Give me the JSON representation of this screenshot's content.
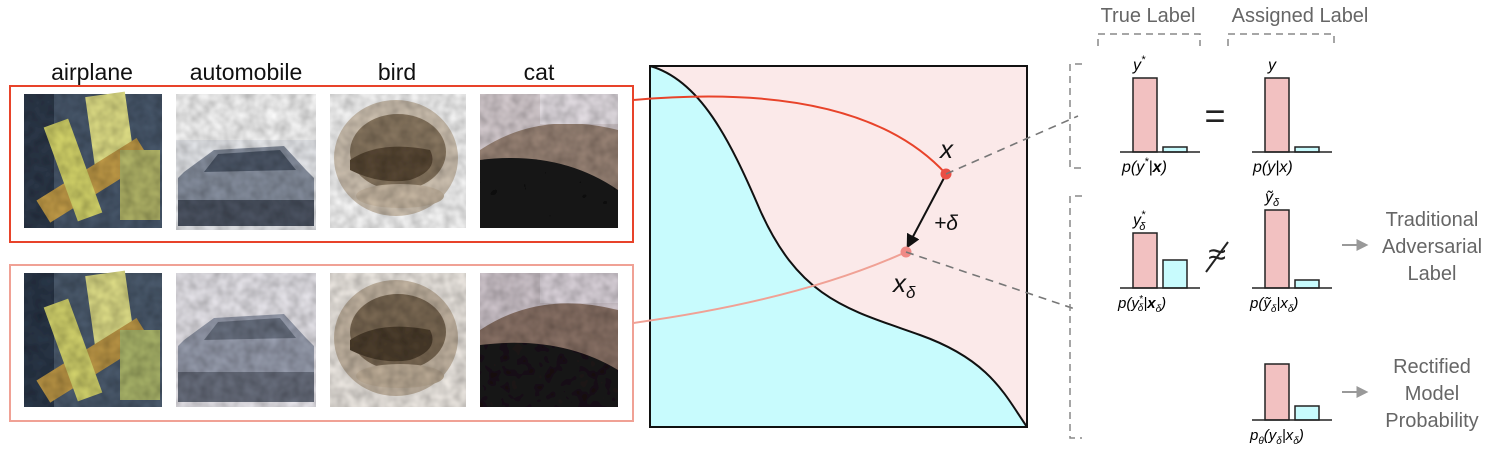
{
  "classes": [
    "airplane",
    "automobile",
    "bird",
    "cat"
  ],
  "colors": {
    "clean_frame": "#e8432a",
    "adv_frame": "#f0a195",
    "region_left": "#c8fbfd",
    "region_right": "#fbe9e9",
    "bar_pink": "#f2c1c1",
    "bar_cyan": "#c8fbfd",
    "clean_point": "#ea4f45",
    "adv_point": "#f08a86",
    "connector": "#777777",
    "label_text": "#666666"
  },
  "plot": {
    "point_clean": "x",
    "perturbation": "+δ",
    "point_adv": "x_δ"
  },
  "headers": {
    "true_label": "True Label",
    "assigned_label": "Assigned Label"
  },
  "row1": {
    "true_bar_label": "y*",
    "true_axis_label": "p(y*|x)",
    "relation": "=",
    "assigned_bar_label": "y",
    "assigned_axis_label": "p(y|x)",
    "true_bars": [
      0.95,
      0.05
    ],
    "assigned_bars": [
      0.95,
      0.05
    ]
  },
  "row2": {
    "true_bar_label": "y*_δ",
    "true_axis_label": "p(y*_δ|x_δ)",
    "relation": "≉",
    "assigned_bar_label": "ỹ_δ",
    "assigned_axis_label": "p(ỹ_δ|x_δ)",
    "true_bars": [
      0.62,
      0.32
    ],
    "assigned_bars": [
      0.92,
      0.07
    ],
    "result_label": [
      "Traditional",
      "Adversarial",
      "Label"
    ]
  },
  "row3": {
    "axis_label": "p_θ(y_δ|x_δ)",
    "bars": [
      0.75,
      0.18
    ],
    "result_label": [
      "Rectified",
      "Model",
      "Probability"
    ]
  }
}
